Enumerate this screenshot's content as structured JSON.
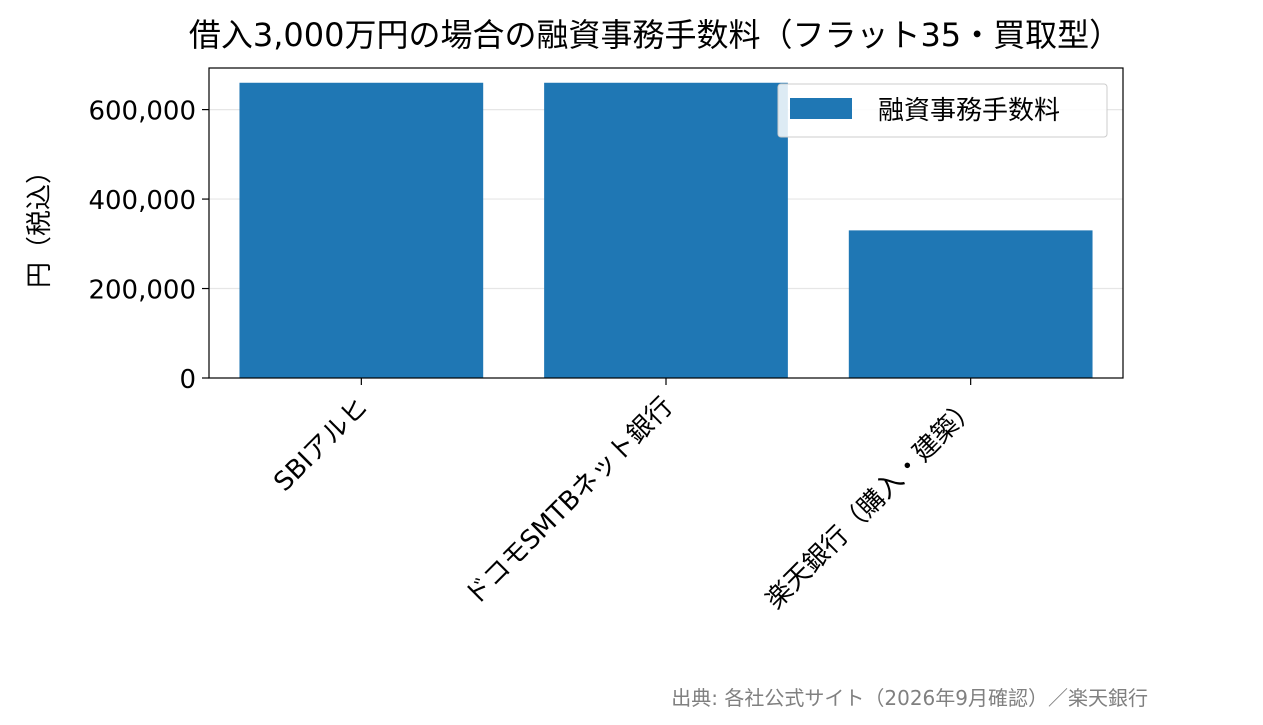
{
  "chart_data": {
    "type": "bar",
    "title": "借入3,000万円の場合の融資事務手数料（フラット35・買取型）",
    "xlabel": "",
    "ylabel": "円（税込）",
    "categories": [
      "SBIアルヒ",
      "ドコモSMTBネット銀行",
      "楽天銀行（購入・建築）"
    ],
    "series": [
      {
        "name": "融資事務手数料",
        "values": [
          660000,
          660000,
          330000
        ],
        "color": "#1f77b4"
      }
    ],
    "ylim": [
      0,
      693000
    ],
    "yticks": [
      0,
      200000,
      400000,
      600000
    ],
    "ytick_labels": [
      "0",
      "200,000",
      "400,000",
      "600,000"
    ],
    "grid": "y",
    "legend_position": "top-right",
    "source_note": "出典: 各社公式サイト（2026年9月確認）／楽天銀行"
  }
}
